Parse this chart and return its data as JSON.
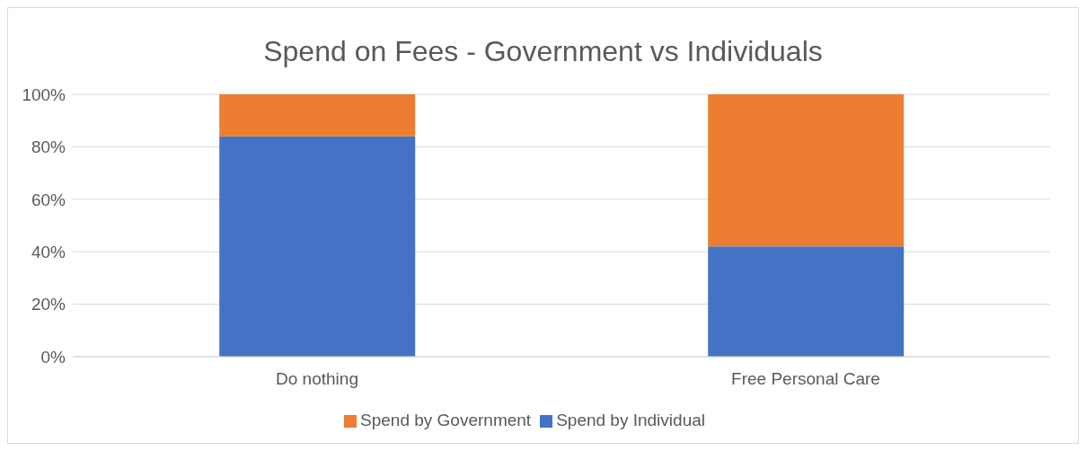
{
  "chart_data": {
    "type": "bar",
    "title": "Spend on Fees - Government vs Individuals",
    "categories": [
      "Do nothing",
      "Free Personal Care"
    ],
    "stacked": true,
    "series": [
      {
        "name": "Spend by Individual",
        "color": "#4472c4",
        "values": [
          84,
          42
        ]
      },
      {
        "name": "Spend by Government",
        "color": "#ed7d31",
        "values": [
          16,
          58
        ]
      }
    ],
    "ylim": [
      0,
      100
    ],
    "yticks": [
      {
        "value": 0,
        "label": "0%"
      },
      {
        "value": 20,
        "label": "20%"
      },
      {
        "value": 40,
        "label": "40%"
      },
      {
        "value": 60,
        "label": "60%"
      },
      {
        "value": 80,
        "label": "80%"
      },
      {
        "value": 100,
        "label": "100%"
      }
    ],
    "grid": "y",
    "legend": "bottom"
  }
}
